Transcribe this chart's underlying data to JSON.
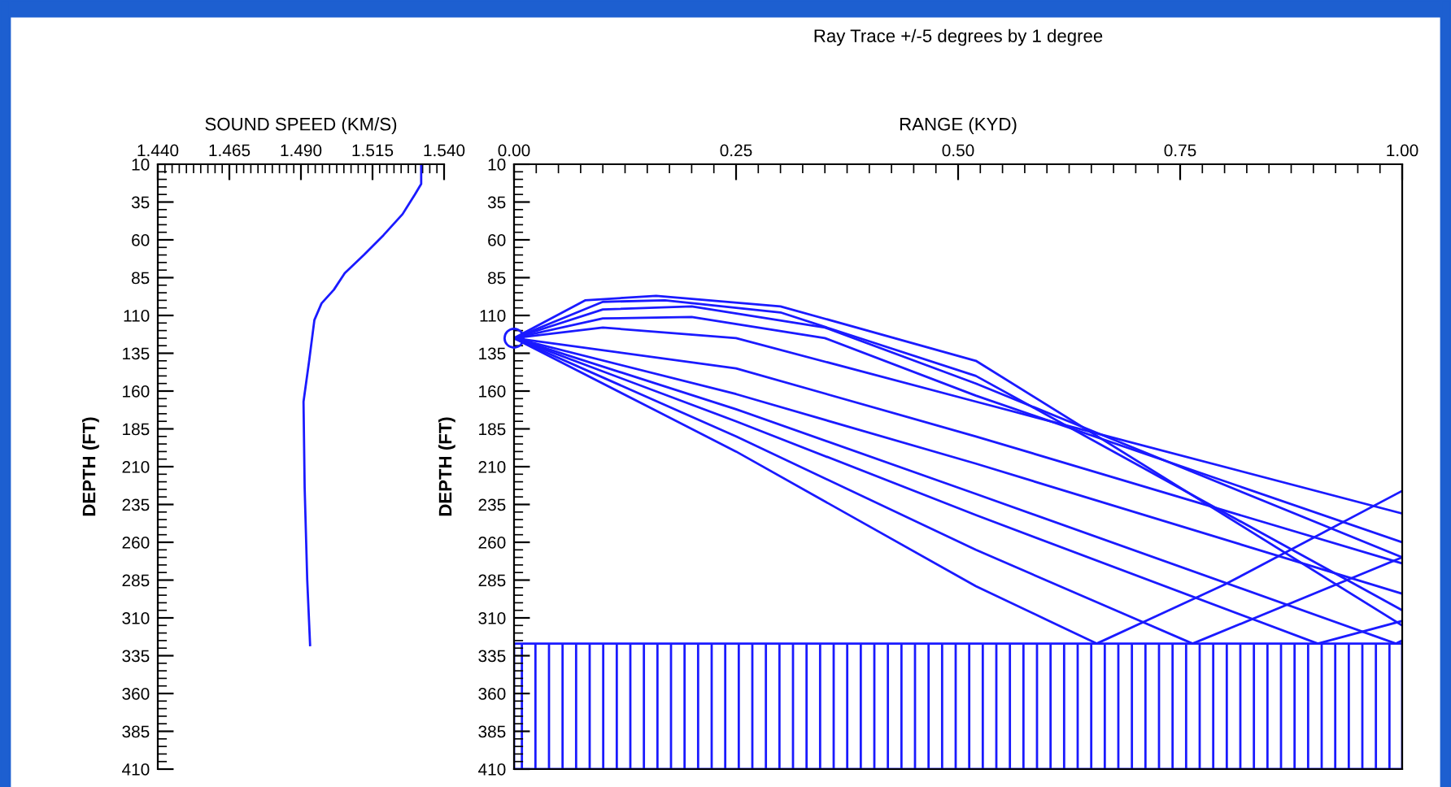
{
  "chart_data": [
    {
      "type": "line",
      "xlabel": "SOUND SPEED (KM/S)",
      "ylabel": "DEPTH (FT)",
      "xlim": [
        1.44,
        1.54
      ],
      "xticks": [
        {
          "value": 1.44,
          "label": "1.440"
        },
        {
          "value": 1.465,
          "label": "1.465"
        },
        {
          "value": 1.49,
          "label": "1.490"
        },
        {
          "value": 1.515,
          "label": "1.515"
        },
        {
          "value": 1.54,
          "label": "1.540"
        }
      ],
      "ylim": [
        410,
        10
      ],
      "yticks": [
        10,
        35,
        60,
        85,
        110,
        135,
        160,
        185,
        210,
        235,
        260,
        285,
        310,
        335,
        360,
        385,
        410
      ],
      "grid": false,
      "series": [
        {
          "color": "#1a1aff",
          "x": [
            1.532,
            1.532,
            1.5298,
            1.5255,
            1.5188,
            1.512,
            1.5053,
            1.5015,
            1.4972,
            1.4947,
            1.4928,
            1.4909,
            1.4913,
            1.4922,
            1.4932
          ],
          "values": [
            11,
            23,
            30,
            43,
            57,
            70,
            82,
            93,
            102,
            113,
            141,
            167,
            224,
            285,
            328
          ]
        }
      ]
    },
    {
      "type": "line",
      "title": "Ray Trace +/-5 degrees by 1 degree",
      "xlabel": "RANGE (KYD)",
      "ylabel": "DEPTH (FT)",
      "xlim": [
        0,
        1
      ],
      "xticks": [
        {
          "value": 0,
          "label": "0.00"
        },
        {
          "value": 0.25,
          "label": "0.25"
        },
        {
          "value": 0.5,
          "label": "0.50"
        },
        {
          "value": 0.75,
          "label": "0.75"
        },
        {
          "value": 1,
          "label": "1.00"
        }
      ],
      "ylim": [
        410,
        10
      ],
      "yticks": [
        10,
        35,
        60,
        85,
        110,
        135,
        160,
        185,
        210,
        235,
        260,
        285,
        310,
        335,
        360,
        385,
        410
      ],
      "grid": false,
      "bands": [
        {
          "axis": "y",
          "from": 327,
          "to": 410,
          "color": "#1a1aff"
        }
      ],
      "series": [
        {
          "color": "#1a1aff",
          "x": [
            0,
            0.25,
            0.52,
            0.656,
            0.8,
            1.0
          ],
          "values": [
            125,
            200,
            289,
            327,
            288,
            226
          ]
        },
        {
          "color": "#1a1aff",
          "x": [
            0,
            0.25,
            0.52,
            0.764,
            1.0
          ],
          "values": [
            125,
            190,
            265,
            327,
            270
          ]
        },
        {
          "color": "#1a1aff",
          "x": [
            0,
            0.25,
            0.52,
            0.905,
            1.0
          ],
          "values": [
            125,
            180,
            242,
            327,
            312
          ]
        },
        {
          "color": "#1a1aff",
          "x": [
            0,
            0.25,
            0.52,
            0.993,
            1.0
          ],
          "values": [
            125,
            172,
            228,
            327,
            325
          ]
        },
        {
          "color": "#1a1aff",
          "x": [
            0,
            0.25,
            0.52,
            1.0
          ],
          "values": [
            125,
            162,
            208,
            294
          ]
        },
        {
          "color": "#1a1aff",
          "x": [
            0,
            0.25,
            0.52,
            1.0
          ],
          "values": [
            125,
            145,
            190,
            274
          ]
        },
        {
          "color": "#1a1aff",
          "x": [
            0,
            0.1,
            0.25,
            0.52,
            1.0
          ],
          "values": [
            125,
            118,
            125,
            167,
            241
          ]
        },
        {
          "color": "#1a1aff",
          "x": [
            0,
            0.1,
            0.2,
            0.35,
            0.52,
            1.0
          ],
          "values": [
            125,
            112,
            111,
            125,
            163,
            260
          ]
        },
        {
          "color": "#1a1aff",
          "x": [
            0,
            0.1,
            0.2,
            0.35,
            0.52,
            1.0
          ],
          "values": [
            125,
            106,
            104,
            118,
            155,
            270
          ]
        },
        {
          "color": "#1a1aff",
          "x": [
            0,
            0.1,
            0.17,
            0.3,
            0.52,
            1.0
          ],
          "values": [
            125,
            101,
            100,
            108,
            150,
            305
          ]
        },
        {
          "color": "#1a1aff",
          "x": [
            0,
            0.08,
            0.16,
            0.3,
            0.52,
            1.0
          ],
          "values": [
            125,
            100,
            97,
            104,
            140,
            315
          ]
        },
        {
          "type": "scatter",
          "marker": "circle",
          "color": "#1a1aff",
          "x": [
            0
          ],
          "values": [
            125
          ]
        }
      ]
    }
  ]
}
